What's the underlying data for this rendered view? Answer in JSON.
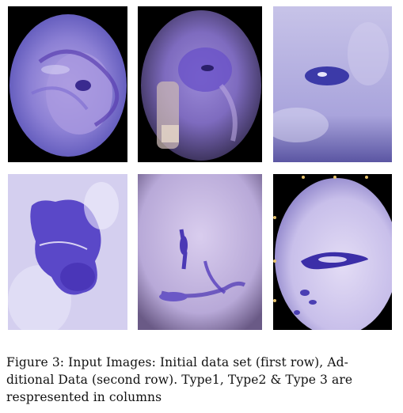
{
  "figure": {
    "caption_lines": [
      "Figure 3: Input Images: Initial data set (first row), Ad-",
      "ditional Data (second row).  Type1, Type2 & Type 3 are",
      "respresented in columns"
    ],
    "images": [
      {
        "name": "type1-initial-image",
        "row": 1,
        "column": 1
      },
      {
        "name": "type2-initial-image",
        "row": 1,
        "column": 2
      },
      {
        "name": "type3-initial-image",
        "row": 1,
        "column": 3
      },
      {
        "name": "type1-additional-image",
        "row": 2,
        "column": 1
      },
      {
        "name": "type2-additional-image",
        "row": 2,
        "column": 2
      },
      {
        "name": "type3-additional-image",
        "row": 2,
        "column": 3
      }
    ]
  }
}
